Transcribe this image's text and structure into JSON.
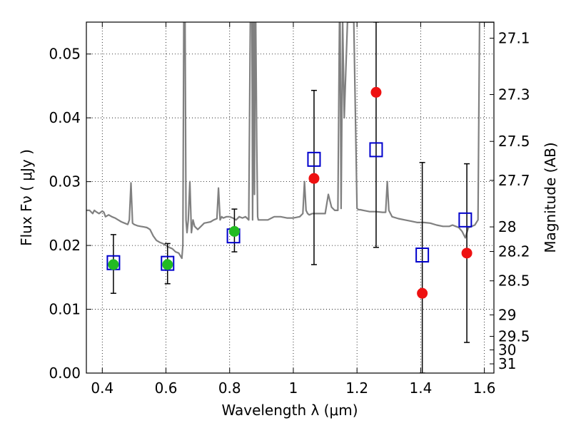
{
  "chart_data": {
    "type": "scatter",
    "xlabel": "Wavelength  λ (μm)",
    "ylabel": "Flux  Fν  ( μJy )",
    "y2label": "Magnitude (AB)",
    "xlim": [
      0.35,
      1.63
    ],
    "ylim": [
      0.0,
      0.055
    ],
    "grid": true,
    "x_ticks": [
      {
        "value": 0.4,
        "label": "0.4"
      },
      {
        "value": 0.6,
        "label": "0.6"
      },
      {
        "value": 0.8,
        "label": "0.8"
      },
      {
        "value": 1.0,
        "label": "1"
      },
      {
        "value": 1.2,
        "label": "1.2"
      },
      {
        "value": 1.4,
        "label": "1.4"
      },
      {
        "value": 1.6,
        "label": "1.6"
      }
    ],
    "y_ticks": [
      {
        "value": 0.0,
        "label": "0.00"
      },
      {
        "value": 0.01,
        "label": "0.01"
      },
      {
        "value": 0.02,
        "label": "0.02"
      },
      {
        "value": 0.03,
        "label": "0.03"
      },
      {
        "value": 0.04,
        "label": "0.04"
      },
      {
        "value": 0.05,
        "label": "0.05"
      }
    ],
    "y2_ticks": [
      {
        "value": 27.1,
        "label": "27.1"
      },
      {
        "value": 27.3,
        "label": "27.3"
      },
      {
        "value": 27.5,
        "label": "27.5"
      },
      {
        "value": 27.7,
        "label": "27.7"
      },
      {
        "value": 28.0,
        "label": "28"
      },
      {
        "value": 28.2,
        "label": "28.2"
      },
      {
        "value": 28.5,
        "label": "28.5"
      },
      {
        "value": 29.0,
        "label": "29"
      },
      {
        "value": 29.5,
        "label": "29.5"
      },
      {
        "value": 30.0,
        "label": "30"
      },
      {
        "value": 31.0,
        "label": "31"
      }
    ],
    "series": [
      {
        "color": "#808080",
        "kind": "spectrum-line",
        "x": [
          0.35,
          0.36,
          0.37,
          0.375,
          0.38,
          0.39,
          0.4,
          0.405,
          0.41,
          0.42,
          0.43,
          0.44,
          0.45,
          0.46,
          0.47,
          0.48,
          0.485,
          0.49,
          0.495,
          0.5,
          0.51,
          0.52,
          0.53,
          0.54,
          0.55,
          0.56,
          0.57,
          0.58,
          0.59,
          0.6,
          0.61,
          0.62,
          0.63,
          0.64,
          0.65,
          0.653,
          0.656,
          0.658,
          0.66,
          0.663,
          0.666,
          0.67,
          0.675,
          0.68,
          0.685,
          0.69,
          0.7,
          0.71,
          0.72,
          0.73,
          0.74,
          0.75,
          0.76,
          0.765,
          0.77,
          0.775,
          0.78,
          0.79,
          0.8,
          0.81,
          0.82,
          0.83,
          0.84,
          0.85,
          0.86,
          0.865,
          0.87,
          0.872,
          0.875,
          0.878,
          0.88,
          0.882,
          0.885,
          0.888,
          0.89,
          0.9,
          0.92,
          0.94,
          0.96,
          0.98,
          1.0,
          1.02,
          1.03,
          1.035,
          1.04,
          1.045,
          1.05,
          1.06,
          1.08,
          1.1,
          1.11,
          1.12,
          1.13,
          1.14,
          1.145,
          1.147,
          1.15,
          1.155,
          1.16,
          1.17,
          1.18,
          1.19,
          1.2,
          1.205,
          1.21,
          1.22,
          1.24,
          1.26,
          1.28,
          1.29,
          1.295,
          1.3,
          1.31,
          1.33,
          1.35,
          1.37,
          1.39,
          1.41,
          1.43,
          1.45,
          1.47,
          1.49,
          1.5,
          1.51,
          1.52,
          1.53,
          1.54,
          1.55,
          1.56,
          1.57,
          1.58,
          1.585,
          1.59,
          1.6,
          1.61,
          1.62,
          1.63
        ],
        "y": [
          0.0255,
          0.0255,
          0.025,
          0.0255,
          0.0253,
          0.025,
          0.0254,
          0.0252,
          0.0245,
          0.0248,
          0.0245,
          0.0243,
          0.024,
          0.0237,
          0.0235,
          0.0233,
          0.024,
          0.0298,
          0.0235,
          0.0233,
          0.0231,
          0.023,
          0.0229,
          0.0228,
          0.0225,
          0.0215,
          0.0208,
          0.0205,
          0.0203,
          0.02,
          0.0197,
          0.0195,
          0.019,
          0.0188,
          0.018,
          0.02,
          0.055,
          0.055,
          0.055,
          0.024,
          0.022,
          0.024,
          0.03,
          0.022,
          0.024,
          0.023,
          0.0225,
          0.023,
          0.0235,
          0.0236,
          0.0237,
          0.024,
          0.0242,
          0.029,
          0.024,
          0.0245,
          0.0243,
          0.0245,
          0.0245,
          0.0243,
          0.024,
          0.0245,
          0.0243,
          0.0245,
          0.024,
          0.055,
          0.055,
          0.024,
          0.055,
          0.028,
          0.055,
          0.055,
          0.036,
          0.0245,
          0.024,
          0.024,
          0.024,
          0.0245,
          0.0245,
          0.0243,
          0.0243,
          0.0245,
          0.025,
          0.03,
          0.0255,
          0.025,
          0.0248,
          0.025,
          0.025,
          0.025,
          0.028,
          0.026,
          0.0255,
          0.0255,
          0.055,
          0.055,
          0.0258,
          0.055,
          0.04,
          0.055,
          0.055,
          0.055,
          0.0258,
          0.0256,
          0.0256,
          0.0255,
          0.0253,
          0.0253,
          0.0252,
          0.0252,
          0.03,
          0.0255,
          0.0245,
          0.0242,
          0.024,
          0.0238,
          0.0236,
          0.0236,
          0.0235,
          0.0232,
          0.023,
          0.023,
          0.0232,
          0.023,
          0.0228,
          0.0222,
          0.0212,
          0.0228,
          0.023,
          0.0232,
          0.024,
          0.055,
          0.055,
          0.055,
          0.055,
          0.055,
          0.055
        ]
      },
      {
        "kind": "model-flux",
        "marker": "open-square",
        "color": "#0000cc",
        "x": [
          0.435,
          0.605,
          0.812,
          1.065,
          1.26,
          1.405,
          1.54
        ],
        "y": [
          0.0173,
          0.0172,
          0.0215,
          0.0335,
          0.035,
          0.0185,
          0.024
        ]
      },
      {
        "kind": "observed-flux",
        "marker": "filled-circle",
        "color": "#22bb22",
        "x": [
          0.435,
          0.605,
          0.815
        ],
        "y": [
          0.017,
          0.017,
          0.0222
        ],
        "yerr_low": [
          0.0125,
          0.014,
          0.019
        ],
        "yerr_high": [
          0.0217,
          0.0203,
          0.0257
        ]
      },
      {
        "kind": "observed-flux",
        "marker": "filled-circle",
        "color": "#ee1111",
        "x": [
          1.065,
          1.26,
          1.405,
          1.545
        ],
        "y": [
          0.0305,
          0.044,
          0.0125,
          0.0188
        ],
        "yerr_low": [
          0.017,
          0.0197,
          0.0,
          0.0048
        ],
        "yerr_high": [
          0.0443,
          0.055,
          0.033,
          0.0328
        ]
      }
    ]
  }
}
